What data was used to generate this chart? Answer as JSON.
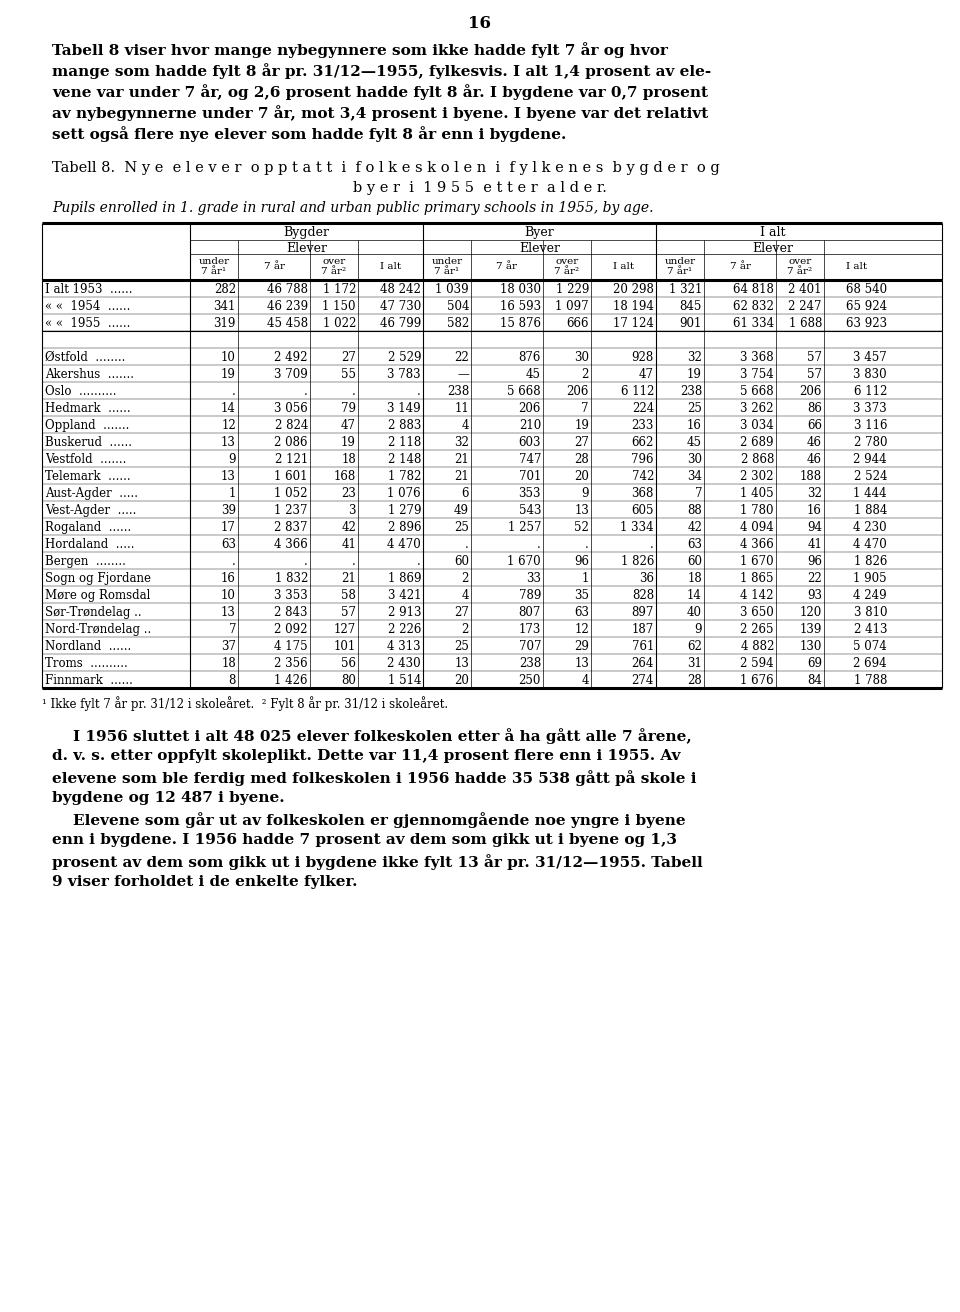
{
  "page_number": "16",
  "intro_text": [
    "Tabell 8 viser hvor mange nybegynnere som ikke hadde fylt 7 år og hvor",
    "mange som hadde fylt 8 år pr. 31/12—1955, fylkesvis. I alt 1,4 prosent av ele-",
    "vene var under 7 år, og 2,6 prosent hadde fylt 8 år. I bygdene var 0,7 prosent",
    "av nybegynnerne under 7 år, mot 3,4 prosent i byene. I byene var det relativt",
    "sett også flere nye elever som hadde fylt 8 år enn i bygdene."
  ],
  "table_title_line1": "Tabell 8.  N y e  e l e v e r  o p p t a t t  i  f o l k e s k o l e n  i  f y l k e n e s  b y g d e r  o g",
  "table_title_line2": "b y e r  i  1 9 5 5  e t t e r  a l d e r.",
  "table_subtitle": "Pupils enrolled in 1. grade in rural and urban public primary schools in 1955, by age.",
  "rows": [
    {
      "label": "I alt 1953  ......",
      "bygder": [
        "282",
        "46 788",
        "1 172",
        "48 242"
      ],
      "byer": [
        "1 039",
        "18 030",
        "1 229",
        "20 298"
      ],
      "ialt": [
        "1 321",
        "64 818",
        "2 401",
        "68 540"
      ]
    },
    {
      "label": "« «  1954  ......",
      "bygder": [
        "341",
        "46 239",
        "1 150",
        "47 730"
      ],
      "byer": [
        "504",
        "16 593",
        "1 097",
        "18 194"
      ],
      "ialt": [
        "845",
        "62 832",
        "2 247",
        "65 924"
      ]
    },
    {
      "label": "« «  1955  ......",
      "bygder": [
        "319",
        "45 458",
        "1 022",
        "46 799"
      ],
      "byer": [
        "582",
        "15 876",
        "666",
        "17 124"
      ],
      "ialt": [
        "901",
        "61 334",
        "1 688",
        "63 923"
      ]
    },
    {
      "label": "",
      "bygder": [
        "",
        "",
        "",
        ""
      ],
      "byer": [
        "",
        "",
        "",
        ""
      ],
      "ialt": [
        "",
        "",
        "",
        ""
      ]
    },
    {
      "label": "Østfold  ........",
      "bygder": [
        "10",
        "2 492",
        "27",
        "2 529"
      ],
      "byer": [
        "22",
        "876",
        "30",
        "928"
      ],
      "ialt": [
        "32",
        "3 368",
        "57",
        "3 457"
      ]
    },
    {
      "label": "Akershus  .......",
      "bygder": [
        "19",
        "3 709",
        "55",
        "3 783"
      ],
      "byer": [
        "—",
        "45",
        "2",
        "47"
      ],
      "ialt": [
        "19",
        "3 754",
        "57",
        "3 830"
      ]
    },
    {
      "label": "Oslo  ..........",
      "bygder": [
        ".",
        ".",
        ".",
        "."
      ],
      "byer": [
        "238",
        "5 668",
        "206",
        "6 112"
      ],
      "ialt": [
        "238",
        "5 668",
        "206",
        "6 112"
      ]
    },
    {
      "label": "Hedmark  ......",
      "bygder": [
        "14",
        "3 056",
        "79",
        "3 149"
      ],
      "byer": [
        "11",
        "206",
        "7",
        "224"
      ],
      "ialt": [
        "25",
        "3 262",
        "86",
        "3 373"
      ]
    },
    {
      "label": "Oppland  .......",
      "bygder": [
        "12",
        "2 824",
        "47",
        "2 883"
      ],
      "byer": [
        "4",
        "210",
        "19",
        "233"
      ],
      "ialt": [
        "16",
        "3 034",
        "66",
        "3 116"
      ]
    },
    {
      "label": "Buskerud  ......",
      "bygder": [
        "13",
        "2 086",
        "19",
        "2 118"
      ],
      "byer": [
        "32",
        "603",
        "27",
        "662"
      ],
      "ialt": [
        "45",
        "2 689",
        "46",
        "2 780"
      ]
    },
    {
      "label": "Vestfold  .......",
      "bygder": [
        "9",
        "2 121",
        "18",
        "2 148"
      ],
      "byer": [
        "21",
        "747",
        "28",
        "796"
      ],
      "ialt": [
        "30",
        "2 868",
        "46",
        "2 944"
      ]
    },
    {
      "label": "Telemark  ......",
      "bygder": [
        "13",
        "1 601",
        "168",
        "1 782"
      ],
      "byer": [
        "21",
        "701",
        "20",
        "742"
      ],
      "ialt": [
        "34",
        "2 302",
        "188",
        "2 524"
      ]
    },
    {
      "label": "Aust-Agder  .....",
      "bygder": [
        "1",
        "1 052",
        "23",
        "1 076"
      ],
      "byer": [
        "6",
        "353",
        "9",
        "368"
      ],
      "ialt": [
        "7",
        "1 405",
        "32",
        "1 444"
      ]
    },
    {
      "label": "Vest-Agder  .....",
      "bygder": [
        "39",
        "1 237",
        "3",
        "1 279"
      ],
      "byer": [
        "49",
        "543",
        "13",
        "605"
      ],
      "ialt": [
        "88",
        "1 780",
        "16",
        "1 884"
      ]
    },
    {
      "label": "Rogaland  ......",
      "bygder": [
        "17",
        "2 837",
        "42",
        "2 896"
      ],
      "byer": [
        "25",
        "1 257",
        "52",
        "1 334"
      ],
      "ialt": [
        "42",
        "4 094",
        "94",
        "4 230"
      ]
    },
    {
      "label": "Hordaland  .....",
      "bygder": [
        "63",
        "4 366",
        "41",
        "4 470"
      ],
      "byer": [
        ".",
        ".",
        ".",
        "."
      ],
      "ialt": [
        "63",
        "4 366",
        "41",
        "4 470"
      ]
    },
    {
      "label": "Bergen  ........",
      "bygder": [
        ".",
        ".",
        ".",
        "."
      ],
      "byer": [
        "60",
        "1 670",
        "96",
        "1 826"
      ],
      "ialt": [
        "60",
        "1 670",
        "96",
        "1 826"
      ]
    },
    {
      "label": "Sogn og Fjordane",
      "bygder": [
        "16",
        "1 832",
        "21",
        "1 869"
      ],
      "byer": [
        "2",
        "33",
        "1",
        "36"
      ],
      "ialt": [
        "18",
        "1 865",
        "22",
        "1 905"
      ]
    },
    {
      "label": "Møre og Romsdal",
      "bygder": [
        "10",
        "3 353",
        "58",
        "3 421"
      ],
      "byer": [
        "4",
        "789",
        "35",
        "828"
      ],
      "ialt": [
        "14",
        "4 142",
        "93",
        "4 249"
      ]
    },
    {
      "label": "Sør-Trøndelag ..",
      "bygder": [
        "13",
        "2 843",
        "57",
        "2 913"
      ],
      "byer": [
        "27",
        "807",
        "63",
        "897"
      ],
      "ialt": [
        "40",
        "3 650",
        "120",
        "3 810"
      ]
    },
    {
      "label": "Nord-Trøndelag ..",
      "bygder": [
        "7",
        "2 092",
        "127",
        "2 226"
      ],
      "byer": [
        "2",
        "173",
        "12",
        "187"
      ],
      "ialt": [
        "9",
        "2 265",
        "139",
        "2 413"
      ]
    },
    {
      "label": "Nordland  ......",
      "bygder": [
        "37",
        "4 175",
        "101",
        "4 313"
      ],
      "byer": [
        "25",
        "707",
        "29",
        "761"
      ],
      "ialt": [
        "62",
        "4 882",
        "130",
        "5 074"
      ]
    },
    {
      "label": "Troms  ..........",
      "bygder": [
        "18",
        "2 356",
        "56",
        "2 430"
      ],
      "byer": [
        "13",
        "238",
        "13",
        "264"
      ],
      "ialt": [
        "31",
        "2 594",
        "69",
        "2 694"
      ]
    },
    {
      "label": "Finnmark  ......",
      "bygder": [
        "8",
        "1 426",
        "80",
        "1 514"
      ],
      "byer": [
        "20",
        "250",
        "4",
        "274"
      ],
      "ialt": [
        "28",
        "1 676",
        "84",
        "1 788"
      ]
    }
  ],
  "footnote": "¹ Ikke fylt 7 år pr. 31/12 i skoleåret.  ² Fylt 8 år pr. 31/12 i skoleåret.",
  "outro_text": [
    "    I 1956 sluttet i alt 48 025 elever folkeskolen etter å ha gått alle 7 årene,",
    "d. v. s. etter oppfylt skoleplikt. Dette var 11,4 prosent flere enn i 1955. Av",
    "elevene som ble ferdig med folkeskolen i 1956 hadde 35 538 gått på skole i",
    "bygdene og 12 487 i byene.",
    "    Elevene som går ut av folkeskolen er gjennomgående noe yngre i byene",
    "enn i bygdene. I 1956 hadde 7 prosent av dem som gikk ut i byene og 1,3",
    "prosent av dem som gikk ut i bygdene ikke fylt 13 år pr. 31/12—1955. Tabell",
    "9 viser forholdet i de enkelte fylker."
  ]
}
